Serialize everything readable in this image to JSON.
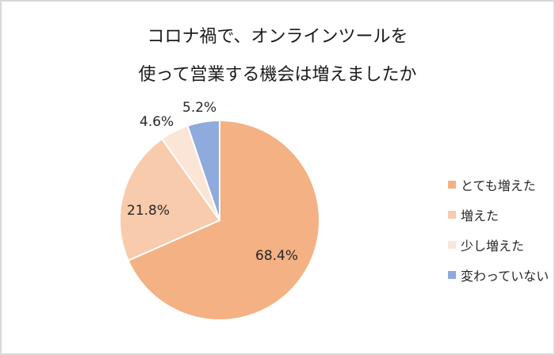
{
  "title": {
    "line1": "コロナ禍で、オンラインツールを",
    "line2": "使って営業する機会は増えましたか"
  },
  "legend": {
    "items": [
      {
        "label": "とても増えた",
        "color": "#f4b183"
      },
      {
        "label": "増えた",
        "color": "#f8cbad"
      },
      {
        "label": "少し増えた",
        "color": "#fbe5d6"
      },
      {
        "label": "変わっていない",
        "color": "#8faadc"
      }
    ]
  },
  "labels": {
    "l0": "68.4%",
    "l1": "21.8%",
    "l2": "4.6%",
    "l3": "5.2%"
  },
  "chart_data": {
    "type": "pie",
    "title": "コロナ禍で、オンラインツールを使って営業する機会は増えましたか",
    "categories": [
      "とても増えた",
      "増えた",
      "少し増えた",
      "変わっていない"
    ],
    "values": [
      68.4,
      21.8,
      4.6,
      5.2
    ],
    "colors": [
      "#f4b183",
      "#f8cbad",
      "#fbe5d6",
      "#8faadc"
    ],
    "legend_position": "right",
    "data_labels": [
      "68.4%",
      "21.8%",
      "4.6%",
      "5.2%"
    ]
  }
}
